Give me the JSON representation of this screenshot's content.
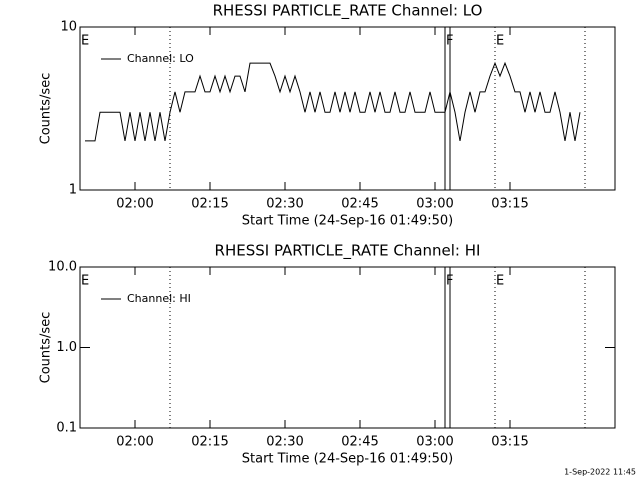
{
  "chart_data": [
    {
      "type": "line",
      "title": "RHESSI PARTICLE_RATE Channel: LO",
      "ylabel": "Counts/sec",
      "xlabel": "Start Time (24-Sep-16 01:49:50)",
      "log_y": true,
      "ylim": [
        1,
        10
      ],
      "yticks": [
        1,
        10
      ],
      "xlim": [
        "01:49",
        "03:36"
      ],
      "xticks": [
        "02:00",
        "02:15",
        "02:30",
        "02:45",
        "03:00",
        "03:15"
      ],
      "legend": "upper left",
      "series": [
        {
          "name": "Channel: LO",
          "color": "#000000",
          "x": [
            "01:50",
            "01:51",
            "01:52",
            "01:53",
            "01:54",
            "01:55",
            "01:56",
            "01:57",
            "01:58",
            "01:59",
            "02:00",
            "02:01",
            "02:02",
            "02:03",
            "02:04",
            "02:05",
            "02:06",
            "02:07",
            "02:08",
            "02:09",
            "02:10",
            "02:11",
            "02:12",
            "02:13",
            "02:14",
            "02:15",
            "02:16",
            "02:17",
            "02:18",
            "02:19",
            "02:20",
            "02:21",
            "02:22",
            "02:23",
            "02:24",
            "02:25",
            "02:26",
            "02:27",
            "02:28",
            "02:29",
            "02:30",
            "02:31",
            "02:32",
            "02:33",
            "02:34",
            "02:35",
            "02:36",
            "02:37",
            "02:38",
            "02:39",
            "02:40",
            "02:41",
            "02:42",
            "02:43",
            "02:44",
            "02:45",
            "02:46",
            "02:47",
            "02:48",
            "02:49",
            "02:50",
            "02:51",
            "02:52",
            "02:53",
            "02:54",
            "02:55",
            "02:56",
            "02:57",
            "02:58",
            "02:59",
            "03:00",
            "03:01",
            "03:02",
            "03:03",
            "03:04",
            "03:05",
            "03:06",
            "03:07",
            "03:08",
            "03:09",
            "03:10",
            "03:11",
            "03:12",
            "03:13",
            "03:14",
            "03:15",
            "03:16",
            "03:17",
            "03:18",
            "03:19",
            "03:20",
            "03:21",
            "03:22",
            "03:23",
            "03:24",
            "03:25",
            "03:26",
            "03:27",
            "03:28",
            "03:29"
          ],
          "values": [
            2,
            2,
            2,
            3,
            3,
            3,
            3,
            3,
            2,
            3,
            2,
            3,
            2,
            3,
            2,
            3,
            2,
            3,
            4,
            3,
            4,
            4,
            4,
            5,
            4,
            4,
            5,
            4,
            5,
            4,
            5,
            5,
            4,
            6,
            6,
            6,
            6,
            6,
            5,
            4,
            5,
            4,
            5,
            4,
            3,
            4,
            3,
            4,
            3,
            3,
            4,
            3,
            4,
            3,
            4,
            3,
            3,
            4,
            3,
            4,
            3,
            3,
            4,
            3,
            3,
            4,
            3,
            3,
            3,
            4,
            3,
            3,
            3,
            4,
            3,
            2,
            3,
            4,
            3,
            4,
            4,
            5,
            6,
            5,
            6,
            5,
            4,
            4,
            3,
            4,
            3,
            4,
            3,
            3,
            4,
            3,
            2,
            3,
            2,
            3
          ]
        }
      ],
      "markers": [
        {
          "label": "E",
          "x": "01:49"
        },
        {
          "label": "F",
          "x": "03:02"
        },
        {
          "label": "E",
          "x": "03:12"
        }
      ],
      "vlines": [
        {
          "x": "02:07",
          "style": "dotted"
        },
        {
          "x": "03:02",
          "style": "solid"
        },
        {
          "x": "03:03",
          "style": "solid"
        },
        {
          "x": "03:12",
          "style": "dotted"
        },
        {
          "x": "03:30",
          "style": "dotted"
        }
      ]
    },
    {
      "type": "line",
      "title": "RHESSI PARTICLE_RATE Channel: HI",
      "ylabel": "Counts/sec",
      "xlabel": "Start Time (24-Sep-16 01:49:50)",
      "log_y": true,
      "ylim": [
        0.1,
        10
      ],
      "yticks": [
        0.1,
        {
          "value": 1,
          "label": "1.0"
        },
        {
          "value": 10,
          "label": "10.0"
        }
      ],
      "xlim": [
        "01:49",
        "03:36"
      ],
      "xticks": [
        "02:00",
        "02:15",
        "02:30",
        "02:45",
        "03:00",
        "03:15"
      ],
      "legend": "upper left",
      "series": [
        {
          "name": "Channel: HI",
          "color": "#000000",
          "x": [],
          "values": []
        }
      ],
      "markers": [
        {
          "label": "E",
          "x": "01:49"
        },
        {
          "label": "F",
          "x": "03:02"
        },
        {
          "label": "E",
          "x": "03:12"
        }
      ],
      "vlines": [
        {
          "x": "02:07",
          "style": "dotted"
        },
        {
          "x": "03:02",
          "style": "solid"
        },
        {
          "x": "03:03",
          "style": "solid"
        },
        {
          "x": "03:12",
          "style": "dotted"
        },
        {
          "x": "03:30",
          "style": "dotted"
        }
      ]
    }
  ],
  "footer": "1-Sep-2022 11:45"
}
